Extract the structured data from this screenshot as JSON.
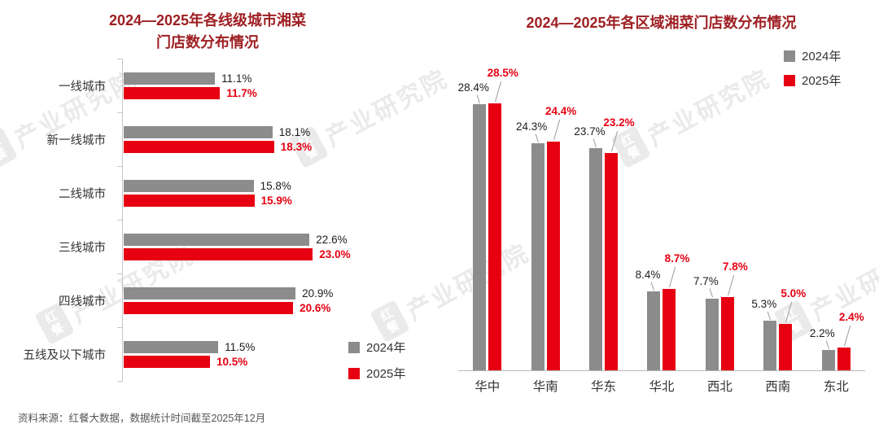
{
  "page": {
    "source_note": "资料来源：红餐大数据，数据统计时间截至2025年12月",
    "watermark": {
      "brand": "红餐",
      "institute": "产业研究院"
    },
    "colors": {
      "title": "#9e1f23",
      "series_2024": "#8c8c8c",
      "series_2025": "#e60012",
      "text": "#333333"
    }
  },
  "chart_data": [
    {
      "type": "bar",
      "orientation": "horizontal",
      "title": "2024—2025年各线级城市湘菜门店数分布情况",
      "title_lines": [
        "2024—2025年各线级城市湘菜",
        "门店数分布情况"
      ],
      "categories": [
        "一线城市",
        "新一线城市",
        "二线城市",
        "三线城市",
        "四线城市",
        "五线及以下城市"
      ],
      "series": [
        {
          "name": "2024年",
          "color": "#8c8c8c",
          "values": [
            11.1,
            18.1,
            15.8,
            22.6,
            20.9,
            11.5
          ]
        },
        {
          "name": "2025年",
          "color": "#e60012",
          "values": [
            11.7,
            18.3,
            15.9,
            23.0,
            20.6,
            10.5
          ]
        }
      ],
      "value_suffix": "%",
      "xlim": [
        0,
        30
      ],
      "legend_position": "bottom-right",
      "grid": false
    },
    {
      "type": "bar",
      "orientation": "vertical",
      "title": "2024—2025年各区域湘菜门店数分布情况",
      "categories": [
        "华中",
        "华南",
        "华东",
        "华北",
        "西北",
        "西南",
        "东北"
      ],
      "series": [
        {
          "name": "2024年",
          "color": "#8c8c8c",
          "values": [
            28.4,
            24.3,
            23.7,
            8.4,
            7.7,
            5.3,
            2.2
          ]
        },
        {
          "name": "2025年",
          "color": "#e60012",
          "values": [
            28.5,
            24.4,
            23.2,
            8.7,
            7.8,
            5.0,
            2.4
          ]
        }
      ],
      "value_suffix": "%",
      "ylim": [
        0,
        30
      ],
      "legend_position": "top-right",
      "grid": false
    }
  ]
}
